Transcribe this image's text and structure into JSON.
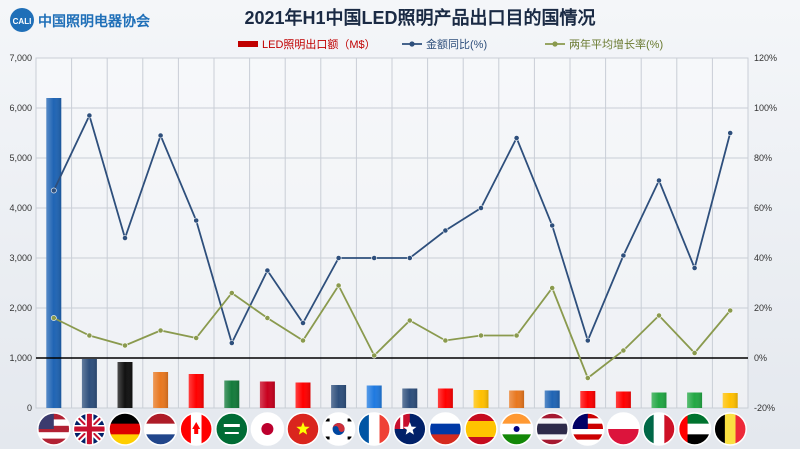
{
  "brand": {
    "badge": "CALI",
    "name": "中国照明电器协会"
  },
  "chart_data": {
    "type": "bar",
    "title": "2021年H1中国LED照明产品出口目的国情况",
    "categories": [
      "美国",
      "英国",
      "德国",
      "荷兰",
      "加拿大",
      "沙特阿拉伯",
      "日本",
      "越南",
      "韩国",
      "法国",
      "澳大利亚",
      "俄罗斯",
      "西班牙",
      "印度",
      "泰国",
      "马来西亚",
      "波兰",
      "墨西哥",
      "阿联酋",
      "比利时"
    ],
    "series": [
      {
        "name": "LED照明出口额（M$）",
        "type": "bar",
        "axis": "left",
        "color": "#1f64b4",
        "values": [
          6200,
          980,
          920,
          720,
          680,
          550,
          530,
          510,
          460,
          450,
          390,
          390,
          360,
          350,
          350,
          340,
          330,
          310,
          310,
          300
        ]
      },
      {
        "name": "金额同比(%)",
        "type": "line",
        "axis": "right",
        "color": "#2e4f7c",
        "values": [
          67,
          97,
          48,
          89,
          55,
          6,
          35,
          14,
          40,
          40,
          40,
          51,
          60,
          88,
          53,
          7,
          41,
          71,
          36,
          90
        ]
      },
      {
        "name": "两年平均增长率(%)",
        "type": "line",
        "axis": "right",
        "color": "#8a9a4e",
        "values": [
          16,
          9,
          5,
          11,
          8,
          26,
          16,
          7,
          29,
          1,
          15,
          7,
          9,
          9,
          28,
          -8,
          3,
          17,
          2,
          19
        ]
      }
    ],
    "bar_colors": [
      "#1f64b4",
      "#2e4f7c",
      "#111111",
      "#e8771f",
      "#ff0000",
      "#137b3b",
      "#c8001e",
      "#ff0000",
      "#2e4f7c",
      "#1f7ae0",
      "#2e4f7c",
      "#ff0000",
      "#ffc000",
      "#e8771f",
      "#1f64b4",
      "#ff0000",
      "#ff0000",
      "#22a744",
      "#22a744",
      "#ffc000"
    ],
    "y_left": {
      "min": 0,
      "max": 7000,
      "ticks": [
        "0",
        "1,000",
        "2,000",
        "3,000",
        "4,000",
        "5,000",
        "6,000",
        "7,000"
      ]
    },
    "y_right": {
      "min": -20,
      "max": 120,
      "ticks": [
        "-20%",
        "0%",
        "20%",
        "40%",
        "60%",
        "80%",
        "100%",
        "120%"
      ]
    },
    "xlabel": "",
    "ylabel": "",
    "grid": true,
    "legend": "top-center"
  }
}
